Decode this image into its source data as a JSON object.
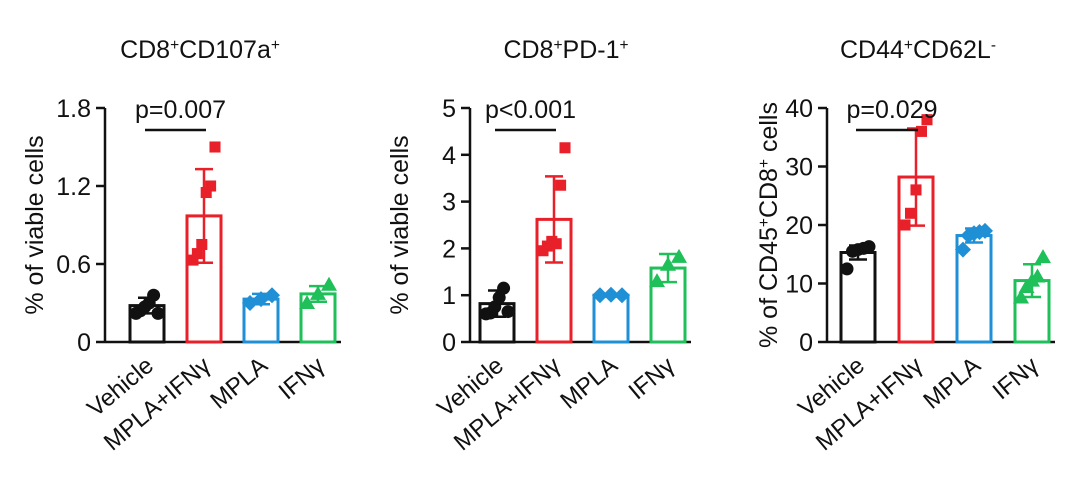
{
  "chart_data": [
    {
      "type": "bar",
      "title_base": "CD8",
      "title_parts": [
        {
          "text": "CD8",
          "sup": false
        },
        {
          "text": "+",
          "sup": true
        },
        {
          "text": "CD107a",
          "sup": false
        },
        {
          "text": "+",
          "sup": true
        }
      ],
      "ylabel_parts": [
        {
          "text": "% of viable cells",
          "sup": false
        }
      ],
      "categories": [
        "Vehicle",
        "MPLA+IFNγ",
        "MPLA",
        "IFNγ"
      ],
      "colors": [
        "#111111",
        "#e8202a",
        "#1f8fd6",
        "#1fbf5a"
      ],
      "markers": [
        "circle",
        "square",
        "diamond",
        "triangle"
      ],
      "means": [
        0.28,
        0.97,
        0.33,
        0.37
      ],
      "errors": [
        0.06,
        0.36,
        0.04,
        0.06
      ],
      "points": [
        [
          0.22,
          0.24,
          0.27,
          0.3,
          0.36,
          0.22
        ],
        [
          0.63,
          0.68,
          0.75,
          1.15,
          1.2,
          1.5
        ],
        [
          0.3,
          0.33,
          0.36
        ],
        [
          0.3,
          0.37,
          0.44
        ]
      ],
      "yticks": [
        "0",
        "0.6",
        "1.2",
        "1.8"
      ],
      "ytick_values": [
        0,
        0.6,
        1.2,
        1.8
      ],
      "ylim": [
        0,
        1.8
      ],
      "pvalue": {
        "text": "p=0.007",
        "from": 0,
        "to": 1
      }
    },
    {
      "type": "bar",
      "title_parts": [
        {
          "text": "CD8",
          "sup": false
        },
        {
          "text": "+",
          "sup": true
        },
        {
          "text": "PD-1",
          "sup": false
        },
        {
          "text": "+",
          "sup": true
        }
      ],
      "ylabel_parts": [
        {
          "text": "% of viable cells",
          "sup": false
        }
      ],
      "categories": [
        "Vehicle",
        "MPLA+IFNγ",
        "MPLA",
        "IFNγ"
      ],
      "colors": [
        "#111111",
        "#e8202a",
        "#1f8fd6",
        "#1fbf5a"
      ],
      "markers": [
        "circle",
        "square",
        "diamond",
        "triangle"
      ],
      "means": [
        0.82,
        2.62,
        1.0,
        1.58
      ],
      "errors": [
        0.28,
        0.92,
        0.03,
        0.3
      ],
      "points": [
        [
          0.6,
          0.62,
          0.75,
          0.95,
          1.15,
          0.65
        ],
        [
          1.95,
          2.05,
          2.15,
          2.1,
          3.35,
          4.15
        ],
        [
          1.0,
          1.01,
          1.0
        ],
        [
          1.3,
          1.65,
          1.82
        ]
      ],
      "yticks": [
        "0",
        "1",
        "2",
        "3",
        "4",
        "5"
      ],
      "ytick_values": [
        0,
        1,
        2,
        3,
        4,
        5
      ],
      "ylim": [
        0,
        5
      ],
      "pvalue": {
        "text": "p<0.001",
        "from": 0,
        "to": 1
      }
    },
    {
      "type": "bar",
      "title_parts": [
        {
          "text": "CD44",
          "sup": false
        },
        {
          "text": "+",
          "sup": true
        },
        {
          "text": "CD62L",
          "sup": false
        },
        {
          "text": "-",
          "sup": true
        }
      ],
      "ylabel_parts": [
        {
          "text": "% of CD45",
          "sup": false
        },
        {
          "text": "+",
          "sup": true
        },
        {
          "text": "CD8",
          "sup": false
        },
        {
          "text": "+",
          "sup": true
        },
        {
          "text": " cells",
          "sup": false
        }
      ],
      "categories": [
        "Vehicle",
        "MPLA+IFNγ",
        "MPLA",
        "IFNγ"
      ],
      "colors": [
        "#111111",
        "#e8202a",
        "#1f8fd6",
        "#1fbf5a"
      ],
      "markers": [
        "circle",
        "square",
        "diamond",
        "triangle"
      ],
      "means": [
        15.3,
        28.2,
        18.2,
        10.5
      ],
      "errors": [
        1.2,
        8.3,
        1.2,
        2.8
      ],
      "points": [
        [
          12.5,
          15.5,
          15.8,
          16.0,
          16.3
        ],
        [
          20.0,
          22.0,
          26.0,
          36.0,
          38.0
        ],
        [
          15.8,
          18.2,
          18.6,
          18.8,
          19.0
        ],
        [
          7.6,
          9.4,
          10.5,
          11.2,
          14.5
        ]
      ],
      "yticks": [
        "0",
        "10",
        "20",
        "30",
        "40"
      ],
      "ytick_values": [
        0,
        10,
        20,
        30,
        40
      ],
      "ylim": [
        0,
        40
      ],
      "pvalue": {
        "text": "p=0.029",
        "from": 0,
        "to": 1
      }
    }
  ]
}
